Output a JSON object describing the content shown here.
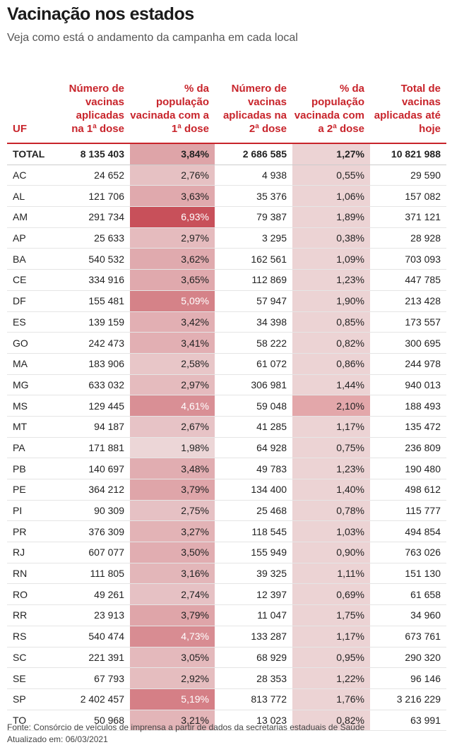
{
  "title": "Vacinação nos estados",
  "subtitle": "Veja como está o andamento da campanha em cada local",
  "footer": {
    "source": "Fonte: Consórcio de veículos de imprensa a partir de dados da secretarias estaduais de Saúde",
    "updated": "Atualizado em: 06/03/2021"
  },
  "colors": {
    "accent": "#c8242b",
    "heat_max": "#c8505a",
    "heat_min": "#ecd6d7",
    "col2_bg": "#ecd3d4"
  },
  "chart_data": {
    "type": "table",
    "columns": [
      "UF",
      "Número de vacinas aplicadas na 1ª dose",
      "% da população vacinada com a 1ª dose",
      "Número de vacinas aplicadas na 2ª dose",
      "% da população vacinada com a 2ª dose",
      "Total de vacinas aplicadas até hoje"
    ],
    "rows": [
      {
        "uf": "TOTAL",
        "d1": "8 135 403",
        "p1": "3,84%",
        "d2": "2 686 585",
        "p2": "1,27%",
        "total": "10 821 988"
      },
      {
        "uf": "AC",
        "d1": "24 652",
        "p1": "2,76%",
        "d2": "4 938",
        "p2": "0,55%",
        "total": "29 590"
      },
      {
        "uf": "AL",
        "d1": "121 706",
        "p1": "3,63%",
        "d2": "35 376",
        "p2": "1,06%",
        "total": "157 082"
      },
      {
        "uf": "AM",
        "d1": "291 734",
        "p1": "6,93%",
        "d2": "79 387",
        "p2": "1,89%",
        "total": "371 121"
      },
      {
        "uf": "AP",
        "d1": "25 633",
        "p1": "2,97%",
        "d2": "3 295",
        "p2": "0,38%",
        "total": "28 928"
      },
      {
        "uf": "BA",
        "d1": "540 532",
        "p1": "3,62%",
        "d2": "162 561",
        "p2": "1,09%",
        "total": "703 093"
      },
      {
        "uf": "CE",
        "d1": "334 916",
        "p1": "3,65%",
        "d2": "112 869",
        "p2": "1,23%",
        "total": "447 785"
      },
      {
        "uf": "DF",
        "d1": "155 481",
        "p1": "5,09%",
        "d2": "57 947",
        "p2": "1,90%",
        "total": "213 428"
      },
      {
        "uf": "ES",
        "d1": "139 159",
        "p1": "3,42%",
        "d2": "34 398",
        "p2": "0,85%",
        "total": "173 557"
      },
      {
        "uf": "GO",
        "d1": "242 473",
        "p1": "3,41%",
        "d2": "58 222",
        "p2": "0,82%",
        "total": "300 695"
      },
      {
        "uf": "MA",
        "d1": "183 906",
        "p1": "2,58%",
        "d2": "61 072",
        "p2": "0,86%",
        "total": "244 978"
      },
      {
        "uf": "MG",
        "d1": "633 032",
        "p1": "2,97%",
        "d2": "306 981",
        "p2": "1,44%",
        "total": "940 013"
      },
      {
        "uf": "MS",
        "d1": "129 445",
        "p1": "4,61%",
        "d2": "59 048",
        "p2": "2,10%",
        "total": "188 493"
      },
      {
        "uf": "MT",
        "d1": "94 187",
        "p1": "2,67%",
        "d2": "41 285",
        "p2": "1,17%",
        "total": "135 472"
      },
      {
        "uf": "PA",
        "d1": "171 881",
        "p1": "1,98%",
        "d2": "64 928",
        "p2": "0,75%",
        "total": "236 809"
      },
      {
        "uf": "PB",
        "d1": "140 697",
        "p1": "3,48%",
        "d2": "49 783",
        "p2": "1,23%",
        "total": "190 480"
      },
      {
        "uf": "PE",
        "d1": "364 212",
        "p1": "3,79%",
        "d2": "134 400",
        "p2": "1,40%",
        "total": "498 612"
      },
      {
        "uf": "PI",
        "d1": "90 309",
        "p1": "2,75%",
        "d2": "25 468",
        "p2": "0,78%",
        "total": "115 777"
      },
      {
        "uf": "PR",
        "d1": "376 309",
        "p1": "3,27%",
        "d2": "118 545",
        "p2": "1,03%",
        "total": "494 854"
      },
      {
        "uf": "RJ",
        "d1": "607 077",
        "p1": "3,50%",
        "d2": "155 949",
        "p2": "0,90%",
        "total": "763 026"
      },
      {
        "uf": "RN",
        "d1": "111 805",
        "p1": "3,16%",
        "d2": "39 325",
        "p2": "1,11%",
        "total": "151 130"
      },
      {
        "uf": "RO",
        "d1": "49 261",
        "p1": "2,74%",
        "d2": "12 397",
        "p2": "0,69%",
        "total": "61 658"
      },
      {
        "uf": "RR",
        "d1": "23 913",
        "p1": "3,79%",
        "d2": "11 047",
        "p2": "1,75%",
        "total": "34 960"
      },
      {
        "uf": "RS",
        "d1": "540 474",
        "p1": "4,73%",
        "d2": "133 287",
        "p2": "1,17%",
        "total": "673 761"
      },
      {
        "uf": "SC",
        "d1": "221 391",
        "p1": "3,05%",
        "d2": "68 929",
        "p2": "0,95%",
        "total": "290 320"
      },
      {
        "uf": "SE",
        "d1": "67 793",
        "p1": "2,92%",
        "d2": "28 353",
        "p2": "1,22%",
        "total": "96 146"
      },
      {
        "uf": "SP",
        "d1": "2 402 457",
        "p1": "5,19%",
        "d2": "813 772",
        "p2": "1,76%",
        "total": "3 216 229"
      },
      {
        "uf": "TO",
        "d1": "50 968",
        "p1": "3,21%",
        "d2": "13 023",
        "p2": "0,82%",
        "total": "63 991"
      }
    ],
    "highlight": {
      "MS": "p2"
    }
  }
}
